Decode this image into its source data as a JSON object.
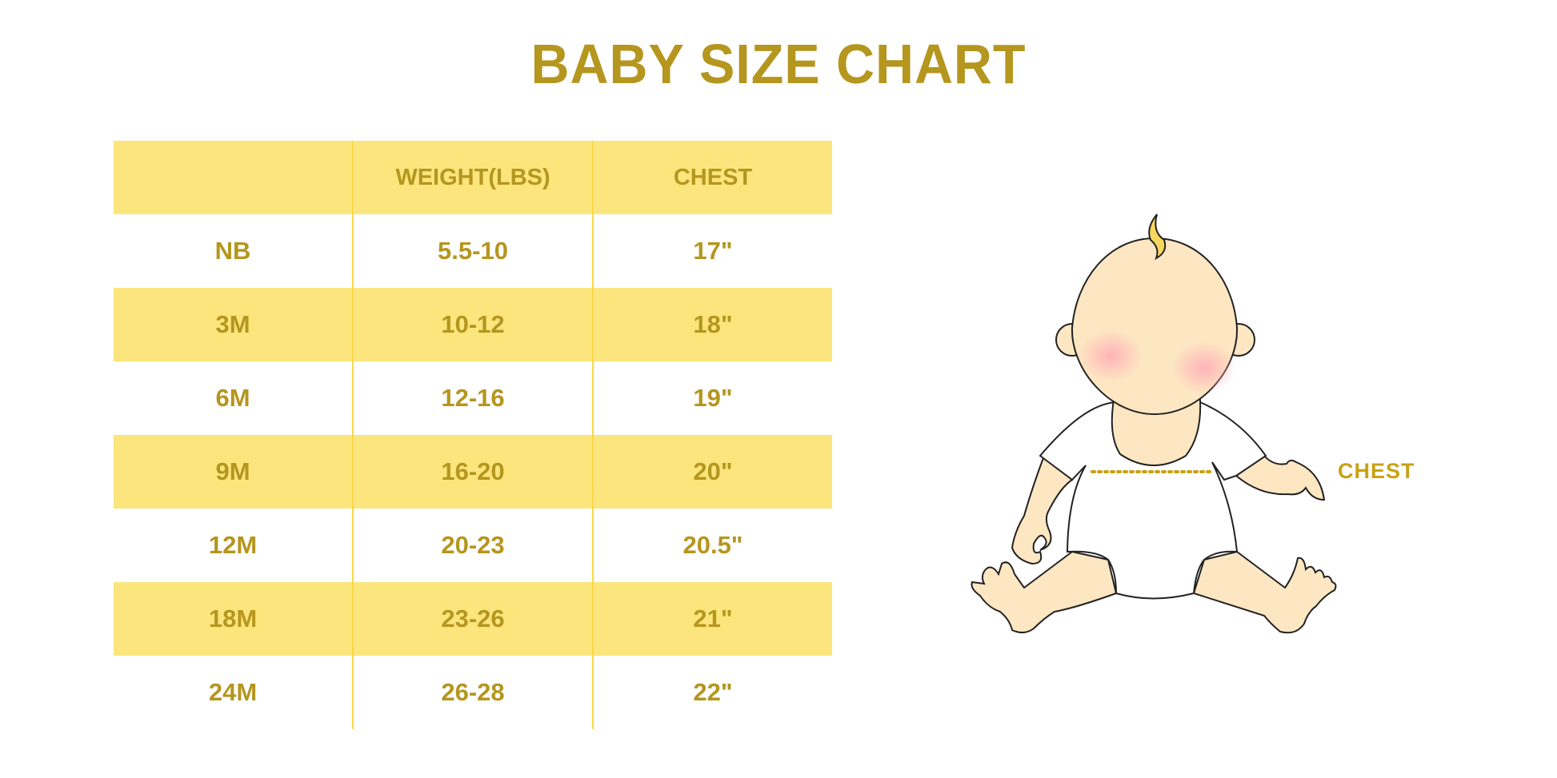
{
  "title": "BABY SIZE CHART",
  "chart_data": {
    "type": "table",
    "title": "BABY SIZE CHART",
    "columns": [
      "",
      "WEIGHT(LBS)",
      "CHEST"
    ],
    "rows": [
      [
        "NB",
        "5.5-10",
        "17\""
      ],
      [
        "3M",
        "10-12",
        "18\""
      ],
      [
        "6M",
        "12-16",
        "19\""
      ],
      [
        "9M",
        "16-20",
        "20\""
      ],
      [
        "12M",
        "20-23",
        "20.5\""
      ],
      [
        "18M",
        "23-26",
        "21\""
      ],
      [
        "24M",
        "26-28",
        "22\""
      ]
    ]
  },
  "illustration": {
    "chest_label": "CHEST"
  },
  "colors": {
    "text": "#b5961e",
    "band": "#fce57d",
    "divider": "#f9d847",
    "skin": "#fde6c2"
  }
}
